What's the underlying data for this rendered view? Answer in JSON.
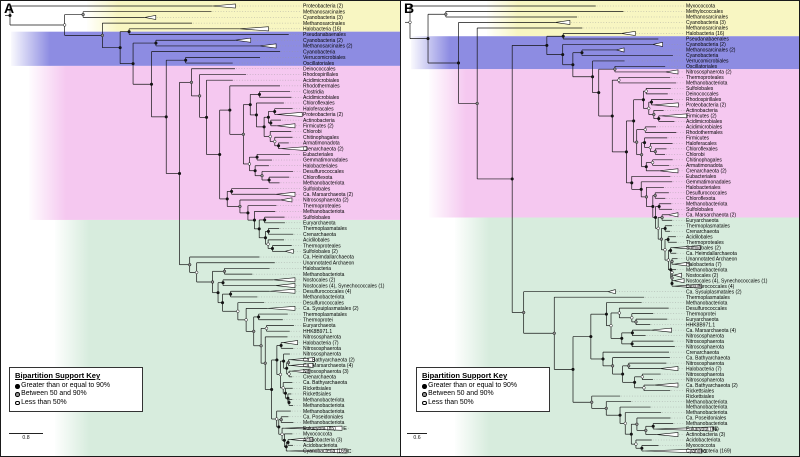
{
  "legend": {
    "title": "Bipartition Support Key",
    "items": [
      {
        "symbol": "filled-circle",
        "label": "Greater than or equal to 90%"
      },
      {
        "symbol": "half-filled-circle",
        "label": "Between 50 and 90%"
      },
      {
        "symbol": "open-circle",
        "label": "Less than 50%"
      }
    ]
  },
  "clade_letters": {
    "Eukaryota (85)": "E",
    "Cyanobacteria (169)": "C"
  },
  "panels": [
    {
      "letter": "A",
      "scale_bar_label": "0.8",
      "bands": [
        {
          "name": "yellow",
          "color": "#f8f6c2",
          "from_tip": 0,
          "to_tip": 4
        },
        {
          "name": "blue",
          "color": "#8d8ce2",
          "from_tip": 5,
          "to_tip": 10
        },
        {
          "name": "pink",
          "color": "#f5c8f0",
          "from_tip": 11,
          "to_tip": 37
        },
        {
          "name": "green",
          "color": "#d7ecdd",
          "from_tip": 38,
          "to_tip": 78
        }
      ],
      "tips": [
        "Proteobacteria (2)",
        "Methanosarcinales",
        "Cyanobacteria (3)",
        "Methanosarcinales",
        "Halobacteria (16)",
        "Pseudanabaenales",
        "Cyanobacteria (2)",
        "Methanosarcinales (2)",
        "Cyanobacteria",
        "Verrucomicrobiales",
        "Oscillatoriales",
        "Deinococcales",
        "Rhodospirillales",
        "Acidimicrobiales",
        "Rhodothermales",
        "Clostridia",
        "Acidimicrobiales",
        "Chloroflexales",
        "Haloferacales",
        "Proteobacteria (2)",
        "Actinobacteria",
        "Firmicutes (2)",
        "Chlorobi",
        "Chitinophagales",
        "Armatimonadota",
        "Crenarchaeota (2)",
        "Eubacteriales",
        "Gemmatimonadales",
        "Halobacteriales",
        "Desulfurococcales",
        "Chloroflexota",
        "Methanobacteriota",
        "Sulfolobales",
        "Ca. Marsarchaeota (2)",
        "Nitrososphaerota (2)",
        "Thermoproteales",
        "Methanobacteriota",
        "Sulfolobales",
        "Euryarchaeota",
        "Thermoplasmatales",
        "Crenarchaeota",
        "Acidilobales",
        "Thermoproteales",
        "Sulfolobales (2)",
        "Ca. Heimdallarchaeota",
        "Unannotated Archaeon",
        "Halobacteria",
        "Methanobacteriota",
        "Nostocales (2)",
        "Nostocales (4), Synechococcales (1)",
        "Desulfurococcales (4)",
        "Methanobacteriota",
        "Desulfurococcales",
        "Ca. Sysuiplasmatales (2)",
        "Thermoplasmatales",
        "Thermoprotei",
        "Euryarchaeota",
        "HHK8B971.1",
        "Nitrososphaerota",
        "Halobacteria (7)",
        "Nitrososphaerota",
        "Nitrososphaerota",
        "Ca. Bathyarchaeota (2)",
        "Ca. Marsarchaeota (4)",
        "Nitrososphaerota (3)",
        "Crenarchaeota",
        "Ca. Bathyarchaeota",
        "Rickettsiales",
        "Rickettsiales",
        "Methanobacteriota",
        "Methanobacteriota",
        "Methanobacteriota",
        "Ca. Poseidoniales",
        "Methanobacteriota",
        "Eukaryota (85)",
        "Myxococcota",
        "Actinobacteria (3)",
        "Acidobacteriota",
        "Cyanobacteria (169)"
      ]
    },
    {
      "letter": "B",
      "scale_bar_label": "0.6",
      "bands": [
        {
          "name": "yellow",
          "color": "#f8f6c2",
          "from_tip": 0,
          "to_tip": 5
        },
        {
          "name": "blue",
          "color": "#8d8ce2",
          "from_tip": 6,
          "to_tip": 11
        },
        {
          "name": "pink",
          "color": "#f5c8f0",
          "from_tip": 12,
          "to_tip": 38
        },
        {
          "name": "green",
          "color": "#d7ecdd",
          "from_tip": 39,
          "to_tip": 81
        }
      ],
      "tips": [
        "Myxococcota",
        "Methylococcales",
        "Methanosarcinales",
        "Cyanobacteria (3)",
        "Methanosarcinales",
        "Halobacteria (16)",
        "Pseudanabaenales",
        "Cyanobacteria (2)",
        "Methanosarcinales (2)",
        "Cyanobacteria",
        "Verrucomicrobiales",
        "Oscillatoriales",
        "Nitrososphaerota (2)",
        "Thermoproteales",
        "Methanobacteriota",
        "Sulfolobales",
        "Deinococcales",
        "Rhodospirillales",
        "Proteobacteria (2)",
        "Actinobacteria",
        "Firmicutes (2)",
        "Acidimicrobiales",
        "Acidimicrobiales",
        "Rhodothermales",
        "Firmicutes",
        "Haloferacales",
        "Chloroflexales",
        "Chlorobi",
        "Chitinophagales",
        "Armatimonadota",
        "Crenarchaeota (2)",
        "Eubacteriales",
        "Gemmatimonadales",
        "Halobacteriales",
        "Desulfurococcales",
        "Chloroflexota",
        "Methanobacteriota",
        "Sulfolobales",
        "Ca. Marsarchaeota (2)",
        "Euryarchaeota",
        "Thermoplasmatales",
        "Crenarchaeota",
        "Acidilobales",
        "Thermoproteales",
        "Sulfolobales (2)",
        "Ca. Heimdallarchaeota",
        "Unannotated Archaeon",
        "Halobacteria (7)",
        "Methanobacteriota",
        "Nostocales (2)",
        "Nostocales (4), Synechococcales (1)",
        "Desulfurococcales (4)",
        "Ca. Sysuiplasmatales (2)",
        "Thermoplasmatales",
        "Methanobacteriota",
        "Desulfurococcales",
        "Thermoprotei",
        "Euryarchaeota",
        "HHK8B971.1",
        "Ca. Marsarchaeota (4)",
        "Nitrososphaerota",
        "Nitrososphaerota",
        "Nitrososphaerota",
        "Crenarchaeota",
        "Ca. Bathyarchaeota",
        "Nitrososphaerota",
        "Halobacteria (7)",
        "Nitrososphaerota",
        "Nitrososphaerota",
        "Ca. Bathyarchaeota (2)",
        "Rickettsiales",
        "Rickettsiales",
        "Methanobacteriota",
        "Methanobacteriota",
        "Methanobacteriota",
        "Ca. Poseidoniales",
        "Methanobacteriota",
        "Eukaryota (85)",
        "Actinobacteria (3)",
        "Acidobacteriota",
        "Myxococcota",
        "Cyanobacteria (169)"
      ]
    }
  ]
}
